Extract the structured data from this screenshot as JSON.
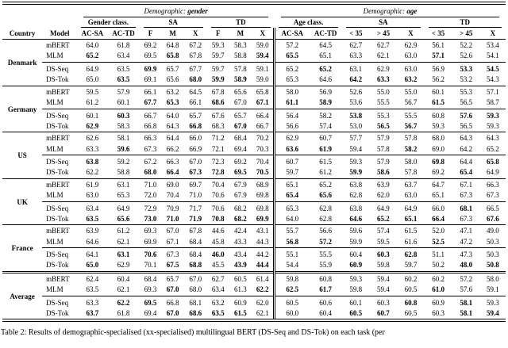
{
  "caption": "Table 2: Results of demographic-specialised (xx-specialised) multilingual BERT (DS-Seq and DS-Tok) on each task (per",
  "header": {
    "country": "Country",
    "model": "Model",
    "gender_demo_prefix": "Demographic:",
    "gender_demo_value": "gender",
    "age_demo_prefix": "Demographic:",
    "age_demo_value": "age",
    "gender_class": "Gender class.",
    "age_class": "Age class.",
    "sa_gender": "SA",
    "td_gender": "TD",
    "sa_age": "SA",
    "td_age": "TD",
    "gender_cols": [
      "AC-SA",
      "AC-TD",
      "F",
      "M",
      "X",
      "F",
      "M",
      "X"
    ],
    "age_cols": [
      "AC-SA",
      "AC-TD",
      "< 35",
      "> 45",
      "X",
      "< 35",
      "> 45",
      "X"
    ]
  },
  "groups": [
    {
      "country": "Denmark",
      "rows": [
        {
          "model": "mBERT",
          "v": [
            "64.0",
            "61.8",
            "69.2",
            "64.8",
            "67.2",
            "59.3",
            "58.3",
            "59.0",
            "57.2",
            "64.5",
            "62.7",
            "62.7",
            "62.9",
            "56.1",
            "52.2",
            "53.4"
          ],
          "bold": []
        },
        {
          "model": "MLM",
          "v": [
            "65.2",
            "63.4",
            "69.5",
            "65.8",
            "67.8",
            "59.7",
            "58.8",
            "59.4",
            "65.5",
            "65.1",
            "63.3",
            "62.1",
            "63.0",
            "57.1",
            "52.6",
            "54.1"
          ],
          "bold": [
            0,
            3,
            7,
            8,
            13
          ]
        },
        {
          "model": "DS-Seq",
          "v": [
            "64.9",
            "63.5",
            "69.9",
            "65.7",
            "67.7",
            "59.7",
            "57.8",
            "59.1",
            "65.2",
            "65.2",
            "63.1",
            "62.9",
            "63.0",
            "56.9",
            "53.3",
            "54.5"
          ],
          "bold": [
            2,
            9,
            14,
            15
          ]
        },
        {
          "model": "DS-Tok",
          "v": [
            "65.0",
            "63.5",
            "69.1",
            "65.6",
            "68.0",
            "59.9",
            "58.9",
            "59.0",
            "65.3",
            "64.6",
            "64.2",
            "63.3",
            "63.2",
            "56.2",
            "53.2",
            "54.3"
          ],
          "bold": [
            1,
            4,
            5,
            6,
            10,
            11,
            12
          ]
        }
      ]
    },
    {
      "country": "Germany",
      "rows": [
        {
          "model": "mBERT",
          "v": [
            "59.5",
            "57.9",
            "66.1",
            "63.2",
            "64.5",
            "67.8",
            "65.6",
            "65.8",
            "58.0",
            "56.9",
            "52.6",
            "55.0",
            "55.0",
            "60.1",
            "55.3",
            "57.1"
          ],
          "bold": []
        },
        {
          "model": "MLM",
          "v": [
            "61.2",
            "60.1",
            "67.7",
            "65.3",
            "66.1",
            "68.6",
            "67.0",
            "67.1",
            "61.1",
            "58.9",
            "53.6",
            "55.5",
            "56.7",
            "61.5",
            "56.5",
            "58.7"
          ],
          "bold": [
            2,
            3,
            5,
            7,
            8,
            9,
            13
          ]
        },
        {
          "model": "DS-Seq",
          "v": [
            "60.1",
            "60.3",
            "66.7",
            "64.0",
            "65.7",
            "67.6",
            "65.7",
            "66.4",
            "56.4",
            "58.2",
            "53.8",
            "55.3",
            "55.5",
            "60.8",
            "57.6",
            "59.3"
          ],
          "bold": [
            1,
            10,
            14,
            15
          ]
        },
        {
          "model": "DS-Tok",
          "v": [
            "62.9",
            "58.3",
            "66.8",
            "64.3",
            "66.8",
            "68.3",
            "67.0",
            "66.7",
            "56.6",
            "57.4",
            "53.0",
            "56.5",
            "56.7",
            "59.3",
            "56.5",
            "59.3"
          ],
          "bold": [
            0,
            4,
            6,
            11,
            12
          ]
        }
      ]
    },
    {
      "country": "US",
      "rows": [
        {
          "model": "mBERT",
          "v": [
            "62.6",
            "58.1",
            "66.3",
            "64.4",
            "66.0",
            "71.2",
            "68.4",
            "70.2",
            "62.9",
            "60.7",
            "57.7",
            "57.9",
            "57.8",
            "68.0",
            "64.3",
            "64.3"
          ],
          "bold": []
        },
        {
          "model": "MLM",
          "v": [
            "63.3",
            "59.6",
            "67.3",
            "66.2",
            "66.9",
            "72.1",
            "69.4",
            "70.3",
            "63.6",
            "61.9",
            "59.4",
            "57.8",
            "58.2",
            "69.0",
            "64.2",
            "65.2"
          ],
          "bold": [
            1,
            8,
            9,
            12
          ]
        },
        {
          "model": "DS-Seq",
          "v": [
            "63.8",
            "59.2",
            "67.2",
            "66.3",
            "67.0",
            "72.3",
            "69.2",
            "70.4",
            "60.7",
            "61.5",
            "59.3",
            "57.9",
            "58.0",
            "69.8",
            "64.4",
            "65.8"
          ],
          "bold": [
            0,
            13,
            15
          ]
        },
        {
          "model": "DS-Tok",
          "v": [
            "62.2",
            "58.8",
            "68.0",
            "66.4",
            "67.3",
            "72.8",
            "69.5",
            "70.5",
            "59.7",
            "61.2",
            "59.9",
            "58.6",
            "57.8",
            "69.2",
            "65.4",
            "64.9"
          ],
          "bold": [
            2,
            3,
            4,
            5,
            6,
            7,
            10,
            11,
            14
          ]
        }
      ]
    },
    {
      "country": "UK",
      "rows": [
        {
          "model": "mBERT",
          "v": [
            "61.9",
            "63.1",
            "71.0",
            "69.0",
            "69.7",
            "70.4",
            "67.9",
            "68.9",
            "65.1",
            "65.2",
            "63.8",
            "63.9",
            "63.7",
            "64.7",
            "67.1",
            "66.3"
          ],
          "bold": []
        },
        {
          "model": "MLM",
          "v": [
            "63.0",
            "65.3",
            "72.0",
            "70.4",
            "71.0",
            "70.6",
            "67.9",
            "69.8",
            "65.4",
            "65.6",
            "62.8",
            "62.0",
            "63.0",
            "65.1",
            "67.3",
            "67.3"
          ],
          "bold": [
            8,
            9
          ]
        },
        {
          "model": "DS-Seq",
          "v": [
            "63.4",
            "64.9",
            "72.9",
            "70.9",
            "71.7",
            "70.6",
            "68.2",
            "69.8",
            "65.3",
            "62.8",
            "63.8",
            "64.9",
            "64.9",
            "66.0",
            "68.1",
            "66.5"
          ],
          "bold": [
            14
          ]
        },
        {
          "model": "DS-Tok",
          "v": [
            "63.5",
            "65.6",
            "73.0",
            "71.0",
            "71.9",
            "70.8",
            "68.2",
            "69.9",
            "64.0",
            "62.8",
            "64.6",
            "65.2",
            "65.1",
            "66.4",
            "67.3",
            "67.6"
          ],
          "bold": [
            0,
            1,
            2,
            3,
            4,
            5,
            6,
            7,
            10,
            11,
            12,
            13,
            15
          ]
        }
      ]
    },
    {
      "country": "France",
      "rows": [
        {
          "model": "mBERT",
          "v": [
            "63.9",
            "61.2",
            "69.3",
            "67.0",
            "67.8",
            "44.6",
            "42.4",
            "43.1",
            "55.7",
            "56.6",
            "59.6",
            "57.4",
            "61.5",
            "52.0",
            "47.1",
            "49.0"
          ],
          "bold": []
        },
        {
          "model": "MLM",
          "v": [
            "64.6",
            "62.1",
            "69.9",
            "67.1",
            "68.4",
            "45.8",
            "43.3",
            "44.3",
            "56.8",
            "57.2",
            "59.9",
            "59.5",
            "61.6",
            "52.5",
            "47.2",
            "50.3"
          ],
          "bold": [
            8,
            9,
            13
          ]
        },
        {
          "model": "DS-Seq",
          "v": [
            "64.1",
            "63.1",
            "70.6",
            "67.3",
            "68.4",
            "46.0",
            "43.4",
            "44.2",
            "55.1",
            "55.5",
            "60.4",
            "60.3",
            "62.8",
            "51.1",
            "47.3",
            "50.3"
          ],
          "bold": [
            1,
            2,
            5,
            11,
            12
          ]
        },
        {
          "model": "DS-Tok",
          "v": [
            "65.0",
            "62.9",
            "70.1",
            "67.5",
            "68.8",
            "45.5",
            "43.9",
            "44.4",
            "54.4",
            "55.9",
            "60.9",
            "59.8",
            "59.7",
            "50.2",
            "48.0",
            "50.8"
          ],
          "bold": [
            0,
            3,
            4,
            6,
            7,
            10,
            14,
            15
          ]
        }
      ]
    },
    {
      "country": "Average",
      "rows": [
        {
          "model": "mBERT",
          "v": [
            "62.4",
            "60.4",
            "68.4",
            "65.7",
            "67.0",
            "62.7",
            "60.5",
            "61.4",
            "59.8",
            "60.8",
            "59.3",
            "59.4",
            "60.2",
            "60.2",
            "57.2",
            "58.0"
          ],
          "bold": []
        },
        {
          "model": "MLM",
          "v": [
            "63.5",
            "62.1",
            "69.3",
            "67.0",
            "68.0",
            "63.4",
            "61.3",
            "62.2",
            "62.5",
            "61.7",
            "59.8",
            "59.4",
            "60.5",
            "61.0",
            "57.6",
            "59.1"
          ],
          "bold": [
            3,
            7,
            8,
            9,
            13
          ]
        },
        {
          "model": "DS-Seq",
          "v": [
            "63.3",
            "62.2",
            "69.5",
            "66.8",
            "68.1",
            "63.2",
            "60.9",
            "62.0",
            "60.5",
            "60.6",
            "60.1",
            "60.3",
            "60.8",
            "60.9",
            "58.1",
            "59.3"
          ],
          "bold": [
            1,
            2,
            12,
            14
          ]
        },
        {
          "model": "DS-Tok",
          "v": [
            "63.7",
            "61.8",
            "69.4",
            "67.0",
            "68.6",
            "63.5",
            "61.5",
            "62.1",
            "60.0",
            "60.4",
            "60.5",
            "60.7",
            "60.5",
            "60.3",
            "58.1",
            "59.4"
          ],
          "bold": [
            0,
            3,
            4,
            5,
            6,
            10,
            11,
            14,
            15
          ]
        }
      ]
    }
  ]
}
